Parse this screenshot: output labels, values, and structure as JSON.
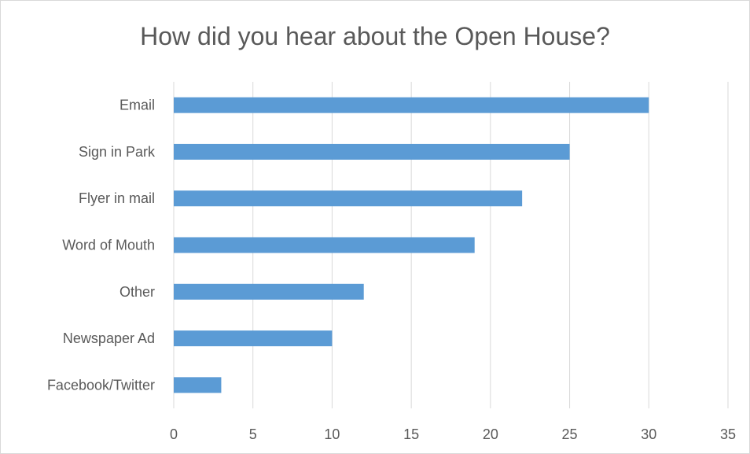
{
  "chart_data": {
    "type": "bar",
    "orientation": "horizontal",
    "title": "How did you hear about the Open House?",
    "categories": [
      "Email",
      "Sign in Park",
      "Flyer in mail",
      "Word of Mouth",
      "Other",
      "Newspaper Ad",
      "Facebook/Twitter"
    ],
    "values": [
      30,
      25,
      22,
      19,
      12,
      10,
      3
    ],
    "xlim": [
      0,
      35
    ],
    "xticks": [
      "0",
      "5",
      "10",
      "15",
      "20",
      "25",
      "30",
      "35"
    ],
    "grid": true,
    "bar_color": "#5b9bd5",
    "grid_color": "#d9d9d9",
    "text_color": "#595959"
  }
}
